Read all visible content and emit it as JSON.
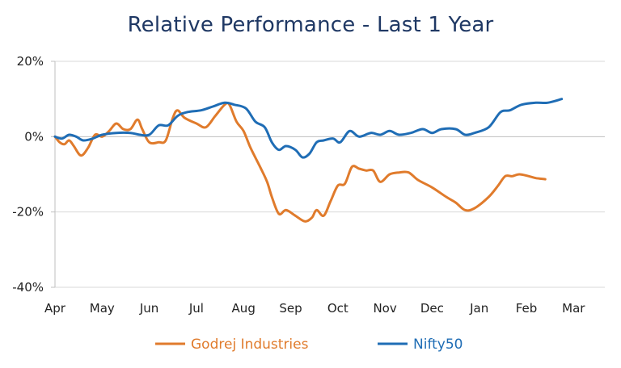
{
  "chart_data": {
    "type": "line",
    "title": "Relative Performance - Last 1 Year",
    "xlabel": "",
    "ylabel": "",
    "ylim": [
      -40,
      20
    ],
    "y_ticks": [
      "20%",
      "0%",
      "-20%",
      "-40%"
    ],
    "y_tick_values": [
      20,
      0,
      -20,
      -40
    ],
    "x_tick_labels": [
      "Apr",
      "May",
      "Jun",
      "Jul",
      "Aug",
      "Sep",
      "Oct",
      "Nov",
      "Dec",
      "Jan",
      "Feb",
      "Mar"
    ],
    "x_unit": "months since start of period",
    "grid": true,
    "legend_position": "bottom",
    "series": [
      {
        "name": "Godrej Industries",
        "color": "#e07b2c",
        "points": [
          [
            0,
            0
          ],
          [
            0.1,
            -1.5
          ],
          [
            0.2,
            -2
          ],
          [
            0.3,
            -1
          ],
          [
            0.4,
            -2.5
          ],
          [
            0.55,
            -5
          ],
          [
            0.7,
            -3
          ],
          [
            0.85,
            0.5
          ],
          [
            1.0,
            0
          ],
          [
            1.15,
            1.5
          ],
          [
            1.3,
            3.5
          ],
          [
            1.45,
            2
          ],
          [
            1.6,
            2
          ],
          [
            1.75,
            4.5
          ],
          [
            1.85,
            2
          ],
          [
            2.0,
            -1.5
          ],
          [
            2.2,
            -1.5
          ],
          [
            2.35,
            -1
          ],
          [
            2.5,
            5
          ],
          [
            2.6,
            7
          ],
          [
            2.75,
            5
          ],
          [
            3.0,
            3.5
          ],
          [
            3.2,
            2.5
          ],
          [
            3.4,
            5.5
          ],
          [
            3.6,
            8.5
          ],
          [
            3.7,
            8.5
          ],
          [
            3.85,
            4
          ],
          [
            4.0,
            1.5
          ],
          [
            4.15,
            -3
          ],
          [
            4.35,
            -8
          ],
          [
            4.5,
            -12
          ],
          [
            4.6,
            -16
          ],
          [
            4.75,
            -20.5
          ],
          [
            4.9,
            -19.5
          ],
          [
            5.1,
            -21
          ],
          [
            5.3,
            -22.5
          ],
          [
            5.45,
            -21.5
          ],
          [
            5.55,
            -19.5
          ],
          [
            5.7,
            -21
          ],
          [
            5.85,
            -17
          ],
          [
            6.0,
            -13
          ],
          [
            6.15,
            -12.5
          ],
          [
            6.3,
            -8
          ],
          [
            6.45,
            -8.5
          ],
          [
            6.6,
            -9
          ],
          [
            6.75,
            -9
          ],
          [
            6.9,
            -12
          ],
          [
            7.1,
            -10
          ],
          [
            7.3,
            -9.5
          ],
          [
            7.5,
            -9.5
          ],
          [
            7.7,
            -11.5
          ],
          [
            8.0,
            -13.5
          ],
          [
            8.3,
            -16
          ],
          [
            8.5,
            -17.5
          ],
          [
            8.7,
            -19.5
          ],
          [
            8.9,
            -19
          ],
          [
            9.2,
            -16
          ],
          [
            9.4,
            -13
          ],
          [
            9.55,
            -10.5
          ],
          [
            9.7,
            -10.5
          ],
          [
            9.85,
            -10
          ],
          [
            10.05,
            -10.5
          ],
          [
            10.2,
            -11
          ],
          [
            10.4,
            -11.3
          ]
        ]
      },
      {
        "name": "Nifty50",
        "color": "#1f6db5",
        "points": [
          [
            0,
            0
          ],
          [
            0.15,
            -0.5
          ],
          [
            0.3,
            0.5
          ],
          [
            0.45,
            0
          ],
          [
            0.6,
            -1
          ],
          [
            0.8,
            -0.5
          ],
          [
            1.0,
            0.5
          ],
          [
            1.3,
            1
          ],
          [
            1.6,
            1
          ],
          [
            1.8,
            0.5
          ],
          [
            2.0,
            0.5
          ],
          [
            2.2,
            3
          ],
          [
            2.4,
            3
          ],
          [
            2.6,
            5.5
          ],
          [
            2.8,
            6.5
          ],
          [
            3.1,
            7
          ],
          [
            3.35,
            8
          ],
          [
            3.6,
            9
          ],
          [
            3.8,
            8.5
          ],
          [
            4.05,
            7.5
          ],
          [
            4.25,
            4
          ],
          [
            4.45,
            2.5
          ],
          [
            4.6,
            -1.5
          ],
          [
            4.75,
            -3.5
          ],
          [
            4.9,
            -2.5
          ],
          [
            5.1,
            -3.5
          ],
          [
            5.25,
            -5.5
          ],
          [
            5.4,
            -4.5
          ],
          [
            5.55,
            -1.5
          ],
          [
            5.7,
            -1
          ],
          [
            5.9,
            -0.5
          ],
          [
            6.05,
            -1.5
          ],
          [
            6.25,
            1.5
          ],
          [
            6.45,
            0
          ],
          [
            6.7,
            1
          ],
          [
            6.9,
            0.5
          ],
          [
            7.1,
            1.5
          ],
          [
            7.3,
            0.5
          ],
          [
            7.55,
            1
          ],
          [
            7.8,
            2
          ],
          [
            8.0,
            1
          ],
          [
            8.2,
            2
          ],
          [
            8.5,
            2
          ],
          [
            8.7,
            0.5
          ],
          [
            8.9,
            1
          ],
          [
            9.2,
            2.5
          ],
          [
            9.45,
            6.5
          ],
          [
            9.65,
            7
          ],
          [
            9.9,
            8.5
          ],
          [
            10.2,
            9
          ],
          [
            10.45,
            9
          ],
          [
            10.75,
            10
          ]
        ]
      }
    ]
  }
}
